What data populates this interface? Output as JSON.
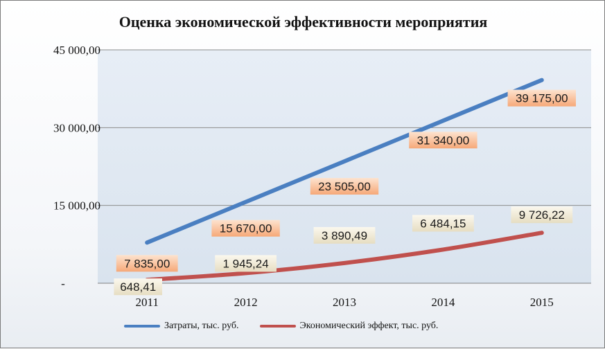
{
  "chart_data": {
    "type": "line",
    "title": "Оценка экономической эффективности мероприятия",
    "categories": [
      "2011",
      "2012",
      "2013",
      "2014",
      "2015"
    ],
    "y_tick_labels": [
      "45 000,00",
      "30 000,00",
      "15 000,00",
      "-"
    ],
    "y_ticks": [
      45000,
      30000,
      15000,
      0
    ],
    "ylim": [
      0,
      45000
    ],
    "grid": true,
    "legend_position": "bottom",
    "series": [
      {
        "name": "Затраты, тыс. руб.",
        "values": [
          7835,
          15670,
          23505,
          31340,
          39175
        ],
        "labels": [
          "7 835,00",
          "15 670,00",
          "23 505,00",
          "31 340,00",
          "39 175,00"
        ],
        "color": "#4a7fc1",
        "label_bg": "#f7b48a"
      },
      {
        "name": "Экономический эффект, тыс. руб.",
        "values": [
          648.41,
          1945.24,
          3890.49,
          6484.15,
          9726.22
        ],
        "labels": [
          "648,41",
          "1 945,24",
          "3 890,49",
          "6 484,15",
          "9 726,22"
        ],
        "color": "#c0504d",
        "label_bg": "#ede6cf"
      }
    ]
  }
}
